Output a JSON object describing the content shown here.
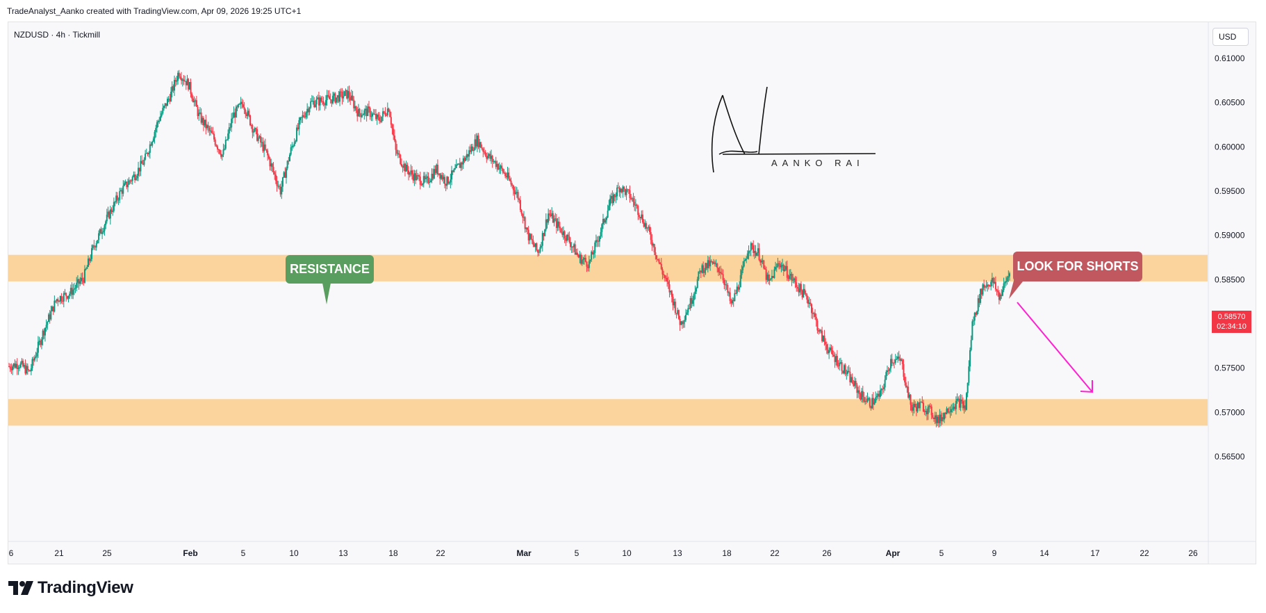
{
  "header": {
    "attribution": "TradeAnalyst_Aanko created with TradingView.com, Apr 09, 2026 19:25 UTC+1"
  },
  "symbol": {
    "label": "NZDUSD · 4h · Tickmill"
  },
  "currency": {
    "label": "USD"
  },
  "footer": {
    "brand": "TradingView"
  },
  "annotations": {
    "resistance": "RESISTANCE",
    "shorts": "LOOK FOR SHORTS",
    "signature": "AANKO RAI"
  },
  "last_price": {
    "price": "0.58570",
    "countdown": "02:34:10"
  },
  "colors": {
    "up": "#089981",
    "down": "#f23645",
    "zone": "#fad49c",
    "resistance_label": "#5a9e5f",
    "shorts_label": "#c2585f",
    "arrow": "#ff1fd2"
  },
  "chart_data": {
    "type": "candlestick",
    "symbol": "NZDUSD",
    "timeframe": "4h",
    "y_axis": {
      "ticks": [
        "0.61000",
        "0.60500",
        "0.60000",
        "0.59500",
        "0.59000",
        "0.58500",
        "0.58000",
        "0.57500",
        "0.57000",
        "0.56500"
      ],
      "range": [
        0.5635,
        0.6125
      ]
    },
    "x_axis": {
      "ticks": [
        "6",
        "21",
        "25",
        "Feb",
        "5",
        "10",
        "13",
        "18",
        "22",
        "Mar",
        "5",
        "10",
        "13",
        "18",
        "22",
        "26",
        "Apr",
        "5",
        "9",
        "14",
        "17",
        "22",
        "26"
      ]
    },
    "zones": [
      {
        "name": "resistance",
        "low": 0.5848,
        "high": 0.5878
      },
      {
        "name": "support",
        "low": 0.5685,
        "high": 0.5715
      }
    ],
    "close_path": [
      [
        0,
        0.5752
      ],
      [
        1.5,
        0.5755
      ],
      [
        3,
        0.5745
      ],
      [
        5,
        0.579
      ],
      [
        7,
        0.5828
      ],
      [
        9,
        0.5835
      ],
      [
        11,
        0.5852
      ],
      [
        12.5,
        0.5888
      ],
      [
        14.5,
        0.592
      ],
      [
        16.5,
        0.595
      ],
      [
        18.5,
        0.5968
      ],
      [
        20,
        0.5985
      ],
      [
        22,
        0.603
      ],
      [
        24,
        0.6062
      ],
      [
        25,
        0.6085
      ],
      [
        26.5,
        0.607
      ],
      [
        28,
        0.6035
      ],
      [
        30,
        0.6012
      ],
      [
        31.5,
        0.599
      ],
      [
        33,
        0.6035
      ],
      [
        34.5,
        0.605
      ],
      [
        36,
        0.602
      ],
      [
        38,
        0.5992
      ],
      [
        40,
        0.595
      ],
      [
        41.5,
        0.5995
      ],
      [
        43,
        0.603
      ],
      [
        44.5,
        0.605
      ],
      [
        46,
        0.6052
      ],
      [
        48,
        0.6055
      ],
      [
        50,
        0.606
      ],
      [
        51.5,
        0.6038
      ],
      [
        53,
        0.604
      ],
      [
        54.5,
        0.603
      ],
      [
        56,
        0.6045
      ],
      [
        57,
        0.5995
      ],
      [
        58.5,
        0.5975
      ],
      [
        60,
        0.5965
      ],
      [
        61.5,
        0.596
      ],
      [
        63,
        0.5975
      ],
      [
        64.5,
        0.596
      ],
      [
        66,
        0.5975
      ],
      [
        67.5,
        0.599
      ],
      [
        69,
        0.6008
      ],
      [
        70.5,
        0.599
      ],
      [
        72,
        0.598
      ],
      [
        73.5,
        0.5965
      ],
      [
        75,
        0.5945
      ],
      [
        76.5,
        0.59
      ],
      [
        78,
        0.588
      ],
      [
        79.5,
        0.5925
      ],
      [
        81,
        0.591
      ],
      [
        82.5,
        0.5895
      ],
      [
        84,
        0.5875
      ],
      [
        85.5,
        0.5868
      ],
      [
        87,
        0.59
      ],
      [
        88.5,
        0.5935
      ],
      [
        90,
        0.5955
      ],
      [
        91.5,
        0.5945
      ],
      [
        93,
        0.5925
      ],
      [
        94.5,
        0.59
      ],
      [
        96,
        0.5865
      ],
      [
        97.5,
        0.5835
      ],
      [
        99,
        0.58
      ],
      [
        100.5,
        0.5825
      ],
      [
        102,
        0.5862
      ],
      [
        103.5,
        0.5868
      ],
      [
        105,
        0.586
      ],
      [
        106.5,
        0.582
      ],
      [
        108,
        0.5855
      ],
      [
        109,
        0.5888
      ],
      [
        110.5,
        0.588
      ],
      [
        112,
        0.5845
      ],
      [
        113.5,
        0.587
      ],
      [
        115,
        0.5855
      ],
      [
        116.5,
        0.584
      ],
      [
        118,
        0.5825
      ],
      [
        119.5,
        0.579
      ],
      [
        121,
        0.5768
      ],
      [
        122.5,
        0.5755
      ],
      [
        124,
        0.5738
      ],
      [
        125.5,
        0.572
      ],
      [
        127,
        0.571
      ],
      [
        128.5,
        0.572
      ],
      [
        130,
        0.576
      ],
      [
        131.5,
        0.5758
      ],
      [
        133,
        0.5705
      ],
      [
        134.5,
        0.5708
      ],
      [
        136,
        0.57
      ],
      [
        137,
        0.569
      ],
      [
        138.5,
        0.5705
      ],
      [
        140,
        0.5712
      ],
      [
        141,
        0.5705
      ],
      [
        142,
        0.58
      ],
      [
        143.5,
        0.5842
      ],
      [
        145,
        0.5848
      ],
      [
        146,
        0.583
      ],
      [
        147.5,
        0.5858
      ]
    ]
  }
}
